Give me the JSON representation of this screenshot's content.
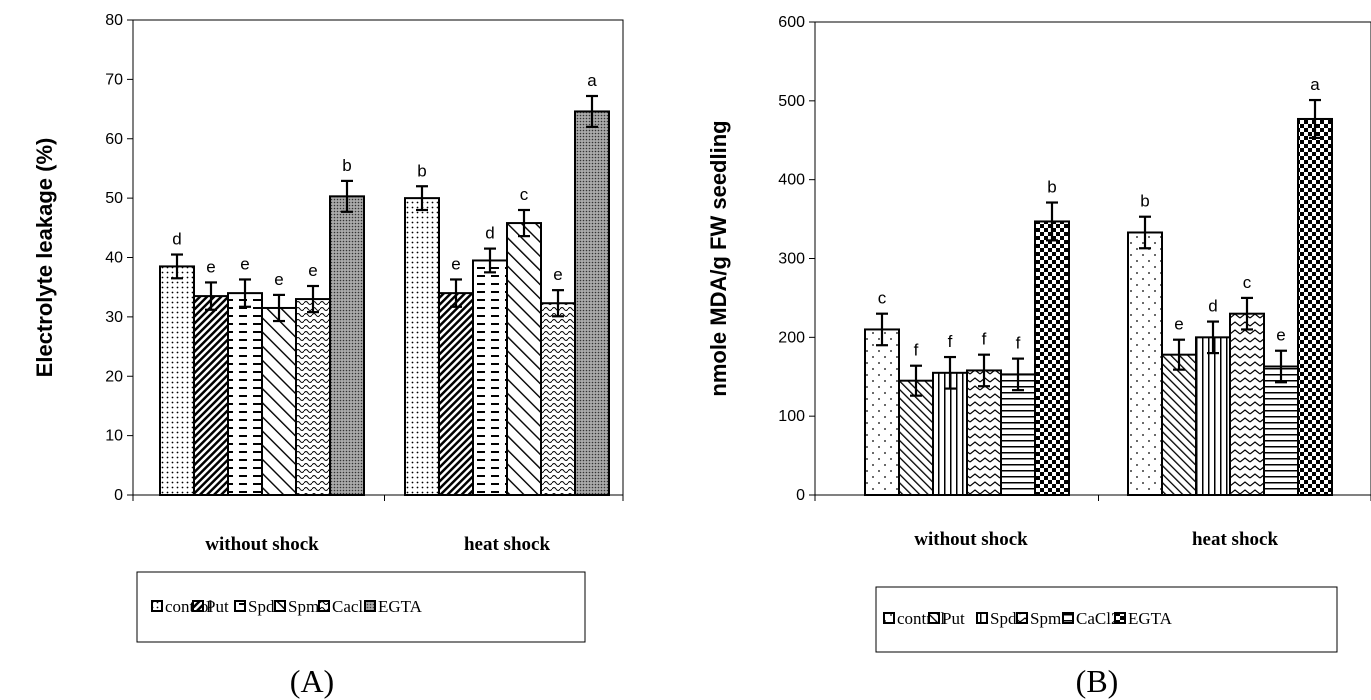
{
  "chart_data": [
    {
      "type": "bar",
      "panel_label": "(A)",
      "ylabel": "Electrolyte leakage (%)",
      "ylim": [
        0,
        80
      ],
      "yticks": [
        0,
        10,
        20,
        30,
        40,
        50,
        60,
        70,
        80
      ],
      "categories": [
        "without shock",
        "heat shock"
      ],
      "legend_position": "bottom",
      "series": [
        {
          "name": "control",
          "values": [
            38.5,
            50.0
          ],
          "errors": [
            2.0,
            2.0
          ],
          "letters": [
            "d",
            "b"
          ],
          "pattern": "dots"
        },
        {
          "name": "Put",
          "values": [
            33.5,
            34.0
          ],
          "errors": [
            2.3,
            2.3
          ],
          "letters": [
            "e",
            "e"
          ],
          "pattern": "diag-dense"
        },
        {
          "name": "Spd",
          "values": [
            34.0,
            39.5
          ],
          "errors": [
            2.3,
            2.0
          ],
          "letters": [
            "e",
            "d"
          ],
          "pattern": "dashes"
        },
        {
          "name": "Spm",
          "values": [
            31.5,
            45.8
          ],
          "errors": [
            2.2,
            2.2
          ],
          "letters": [
            "e",
            "c"
          ],
          "pattern": "diag-wide"
        },
        {
          "name": "Cacl2",
          "values": [
            33.0,
            32.3
          ],
          "errors": [
            2.2,
            2.2
          ],
          "letters": [
            "e",
            "e"
          ],
          "pattern": "waves"
        },
        {
          "name": "EGTA",
          "values": [
            50.3,
            64.6
          ],
          "errors": [
            2.6,
            2.6
          ],
          "letters": [
            "b",
            "a"
          ],
          "pattern": "dense-dots"
        }
      ]
    },
    {
      "type": "bar",
      "panel_label": "(B)",
      "ylabel": "nmole MDA/g FW seedling",
      "ylim": [
        0,
        600
      ],
      "yticks": [
        0,
        100,
        200,
        300,
        400,
        500,
        600
      ],
      "categories": [
        "without shock",
        "heat shock"
      ],
      "legend_position": "bottom",
      "series": [
        {
          "name": "control",
          "values": [
            210,
            333
          ],
          "errors": [
            20,
            20
          ],
          "letters": [
            "c",
            "b"
          ],
          "pattern": "sparse-dots"
        },
        {
          "name": "Put",
          "values": [
            145,
            178
          ],
          "errors": [
            19,
            19
          ],
          "letters": [
            "f",
            "e"
          ],
          "pattern": "diag-back"
        },
        {
          "name": "Spd",
          "values": [
            155,
            200
          ],
          "errors": [
            20,
            20
          ],
          "letters": [
            "f",
            "d"
          ],
          "pattern": "vlines"
        },
        {
          "name": "Spm",
          "values": [
            158,
            230
          ],
          "errors": [
            20,
            20
          ],
          "letters": [
            "f",
            "c"
          ],
          "pattern": "zigzag"
        },
        {
          "name": "CaCl2",
          "values": [
            153,
            163
          ],
          "errors": [
            20,
            20
          ],
          "letters": [
            "f",
            "e"
          ],
          "pattern": "hlines"
        },
        {
          "name": "EGTA",
          "values": [
            347,
            477
          ],
          "errors": [
            24,
            24
          ],
          "letters": [
            "b",
            "a"
          ],
          "pattern": "checker"
        }
      ]
    }
  ]
}
